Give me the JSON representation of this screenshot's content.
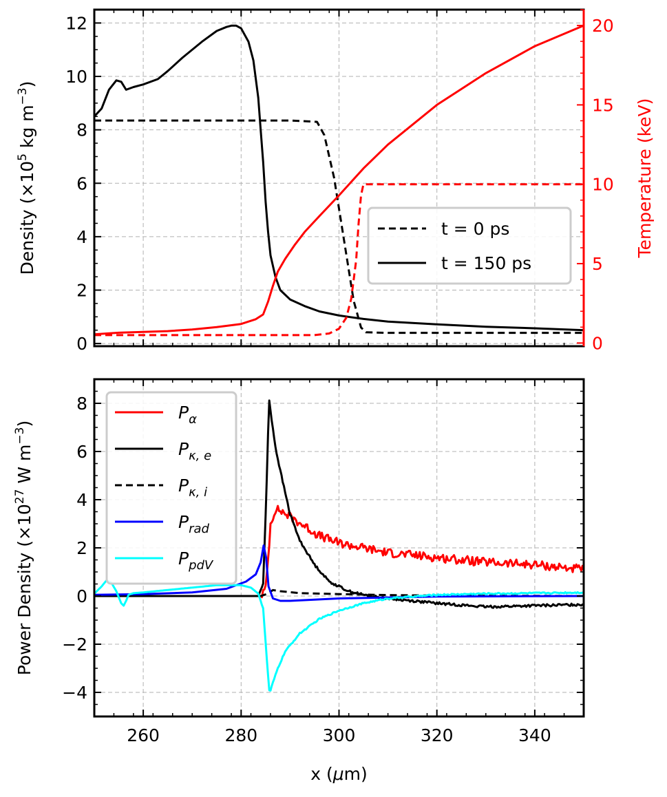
{
  "chart_data": [
    {
      "type": "line",
      "xlim": [
        250,
        350
      ],
      "ylim": [
        -0.1,
        12.5
      ],
      "y2lim": [
        -0.2,
        21
      ],
      "grid": true,
      "legend_position": "center-right",
      "xticks": [
        260,
        280,
        300,
        320,
        340
      ],
      "yticks": [
        {
          "value": 0,
          "label": "0"
        },
        {
          "value": 2,
          "label": "2"
        },
        {
          "value": 4,
          "label": "4"
        },
        {
          "value": 6,
          "label": "6"
        },
        {
          "value": 8,
          "label": "8"
        },
        {
          "value": 10,
          "label": "10"
        },
        {
          "value": 12,
          "label": "12"
        }
      ],
      "y2ticks": [
        {
          "value": 0,
          "label": "0"
        },
        {
          "value": 5,
          "label": "5"
        },
        {
          "value": 10,
          "label": "10"
        },
        {
          "value": 15,
          "label": "15"
        },
        {
          "value": 20,
          "label": "20"
        }
      ],
      "ylabel": {
        "pre": "Density (×10",
        "sup": "5",
        "mid": " kg m",
        "sup2": "−3",
        "post": ")"
      },
      "y2label": "Temperature (keV)",
      "legend": [
        {
          "label": "t = 0 ps",
          "style": "dashed",
          "color": "#000000"
        },
        {
          "label": "t = 150 ps",
          "style": "solid",
          "color": "#000000"
        }
      ],
      "series": [
        {
          "quantity": "density",
          "time": "t = 0 ps",
          "axis": "left",
          "color": "#000000",
          "style": "dashed",
          "x": [
            250,
            290,
            295.5,
            297,
            299,
            301,
            303,
            304.5,
            305.5,
            310,
            350
          ],
          "y": [
            8.35,
            8.35,
            8.3,
            7.8,
            6.2,
            3.9,
            1.6,
            0.6,
            0.42,
            0.4,
            0.4
          ]
        },
        {
          "quantity": "density",
          "time": "t = 150 ps",
          "axis": "left",
          "color": "#000000",
          "style": "solid",
          "x": [
            250,
            251.5,
            253,
            254.5,
            255.5,
            256.5,
            258,
            260,
            263,
            265,
            268,
            272,
            275,
            277,
            278,
            279,
            280,
            281.5,
            282.5,
            283.5,
            284,
            284.5,
            285,
            285.5,
            286,
            287,
            288,
            290,
            293,
            296,
            300,
            305,
            310,
            320,
            330,
            340,
            350
          ],
          "y": [
            8.5,
            8.8,
            9.5,
            9.85,
            9.8,
            9.5,
            9.6,
            9.7,
            9.9,
            10.2,
            10.7,
            11.3,
            11.7,
            11.85,
            11.9,
            11.9,
            11.8,
            11.3,
            10.6,
            9.2,
            8.0,
            6.8,
            5.3,
            4.2,
            3.3,
            2.5,
            2.0,
            1.65,
            1.4,
            1.2,
            1.05,
            0.92,
            0.82,
            0.72,
            0.63,
            0.57,
            0.5
          ]
        },
        {
          "quantity": "temperature",
          "time": "t = 0 ps",
          "axis": "right",
          "color": "#ff0000",
          "style": "dashed",
          "x": [
            250,
            295,
            298,
            300,
            301.5,
            302.5,
            303.5,
            304,
            304.5,
            305,
            350
          ],
          "y": [
            0.5,
            0.5,
            0.6,
            0.9,
            1.6,
            2.8,
            5.2,
            7.5,
            9.3,
            10,
            10
          ]
        },
        {
          "quantity": "temperature",
          "time": "t = 150 ps",
          "axis": "right",
          "color": "#ff0000",
          "style": "solid",
          "x": [
            250,
            255,
            260,
            265,
            270,
            275,
            280,
            283,
            284.5,
            285.5,
            286.5,
            287.5,
            289,
            291,
            293,
            296,
            300,
            305,
            310,
            320,
            330,
            340,
            350
          ],
          "y": [
            0.55,
            0.65,
            0.7,
            0.75,
            0.85,
            1.0,
            1.2,
            1.5,
            1.8,
            2.6,
            3.6,
            4.5,
            5.3,
            6.2,
            7.0,
            8.0,
            9.3,
            11.0,
            12.5,
            15.0,
            17.0,
            18.7,
            20.0
          ]
        }
      ]
    },
    {
      "type": "line",
      "xlim": [
        250,
        350
      ],
      "ylim": [
        -5,
        9
      ],
      "grid": true,
      "legend_position": "upper-left",
      "xticks": [
        260,
        280,
        300,
        320,
        340
      ],
      "yticks": [
        {
          "value": -4,
          "label": "−4"
        },
        {
          "value": -2,
          "label": "−2"
        },
        {
          "value": 0,
          "label": "0"
        },
        {
          "value": 2,
          "label": "2"
        },
        {
          "value": 4,
          "label": "4"
        },
        {
          "value": 6,
          "label": "6"
        },
        {
          "value": 8,
          "label": "8"
        }
      ],
      "xlabel": {
        "pre": "x (",
        "mu": "μ",
        "post": "m)"
      },
      "ylabel": {
        "pre": "Power Density (×10",
        "sup": "27",
        "mid": " W m",
        "sup2": "−3",
        "post": ")"
      },
      "legend": [
        {
          "base": "P",
          "sub": "α",
          "style": "solid",
          "color": "#ff0000"
        },
        {
          "base": "P",
          "sub": "κ, e",
          "style": "solid",
          "color": "#000000"
        },
        {
          "base": "P",
          "sub": "κ, i",
          "style": "dashed",
          "color": "#000000"
        },
        {
          "base": "P",
          "sub": "rad",
          "style": "solid",
          "color": "#0000ff"
        },
        {
          "base": "P",
          "sub": "pdV",
          "style": "solid",
          "color": "#00ffff"
        }
      ],
      "series": [
        {
          "quantity": "P_alpha",
          "color": "#ff0000",
          "style": "solid",
          "x": [
            250,
            284,
            285,
            285.5,
            286,
            287,
            288,
            290,
            293,
            296,
            300,
            305,
            310,
            320,
            330,
            340,
            350
          ],
          "y": [
            0,
            0,
            0.3,
            1.5,
            3.0,
            3.6,
            3.55,
            3.3,
            2.9,
            2.5,
            2.2,
            2.0,
            1.8,
            1.6,
            1.4,
            1.3,
            1.1
          ],
          "noise": 0.18
        },
        {
          "quantity": "P_kappa_e",
          "color": "#000000",
          "style": "solid",
          "x": [
            250,
            283.5,
            284.5,
            285.2,
            285.7,
            286.2,
            287,
            288,
            289,
            290,
            292,
            295,
            298,
            302,
            306,
            310,
            320,
            330,
            340,
            350
          ],
          "y": [
            0,
            0,
            0.5,
            4.5,
            8.2,
            7.4,
            6.2,
            5.2,
            4.3,
            3.4,
            2.3,
            1.3,
            0.6,
            0.2,
            0.0,
            -0.1,
            -0.3,
            -0.45,
            -0.4,
            -0.35
          ],
          "noise": 0.05
        },
        {
          "quantity": "P_kappa_i",
          "color": "#000000",
          "style": "dashed",
          "x": [
            250,
            284,
            285.5,
            286.5,
            288,
            292,
            300,
            310,
            320,
            350
          ],
          "y": [
            0,
            0,
            0.1,
            0.25,
            0.2,
            0.12,
            0.08,
            0.04,
            0.02,
            0.0
          ]
        },
        {
          "quantity": "P_rad",
          "color": "#0000ff",
          "style": "solid",
          "x": [
            250,
            260,
            270,
            277,
            281,
            283,
            284,
            284.6,
            285.1,
            285.6,
            286.5,
            288,
            290,
            300,
            320,
            350
          ],
          "y": [
            0.05,
            0.08,
            0.15,
            0.3,
            0.6,
            0.9,
            1.4,
            2.1,
            1.6,
            0.4,
            -0.1,
            -0.2,
            -0.2,
            -0.1,
            -0.02,
            0.0
          ]
        },
        {
          "quantity": "P_pdV",
          "color": "#00ffff",
          "style": "solid",
          "x": [
            250,
            251.5,
            252.5,
            253.5,
            254.5,
            255.5,
            256,
            256.5,
            257,
            258,
            260,
            265,
            270,
            275,
            280,
            282,
            283.5,
            284.5,
            285.2,
            285.8,
            286.5,
            287.5,
            289,
            292,
            296,
            300,
            305,
            310,
            320,
            330,
            340,
            350
          ],
          "y": [
            0.1,
            0.4,
            0.65,
            0.55,
            0.2,
            -0.3,
            -0.4,
            -0.2,
            0.05,
            0.12,
            0.15,
            0.25,
            0.35,
            0.45,
            0.45,
            0.35,
            0.1,
            -0.5,
            -2.5,
            -4.05,
            -3.6,
            -3.0,
            -2.3,
            -1.55,
            -0.95,
            -0.6,
            -0.3,
            -0.1,
            0.05,
            0.1,
            0.12,
            0.15
          ],
          "noise": 0.03
        }
      ]
    }
  ]
}
